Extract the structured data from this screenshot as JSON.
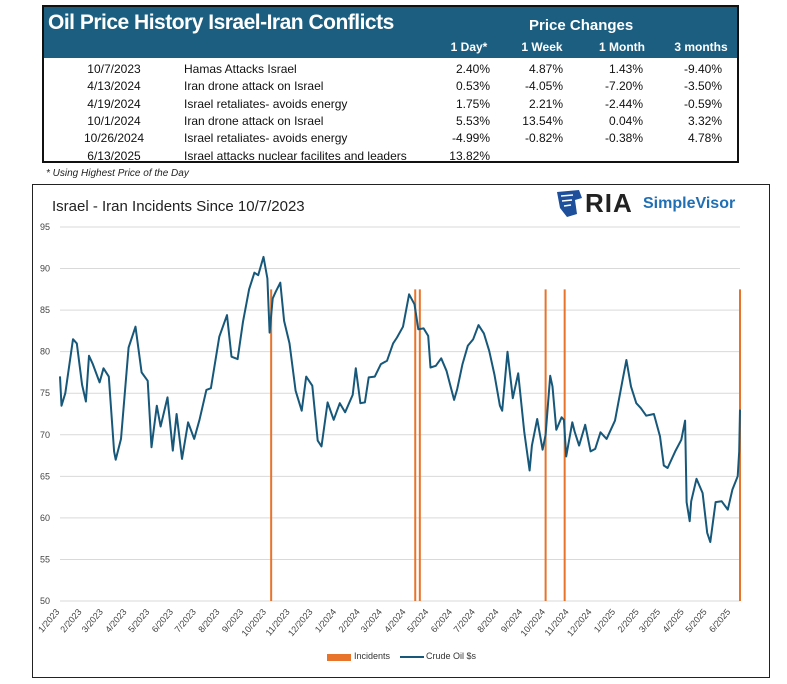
{
  "table": {
    "title": "Oil Price History Israel-Iran Conflicts",
    "group_header": "Price Changes",
    "columns": [
      "1 Day*",
      "1 Week",
      "1 Month",
      "3 months"
    ],
    "rows": [
      {
        "date": "10/7/2023",
        "event": "Hamas Attacks Israel",
        "values": [
          "2.40%",
          "4.87%",
          "1.43%",
          "-9.40%"
        ]
      },
      {
        "date": "4/13/2024",
        "event": "Iran drone attack on Israel",
        "values": [
          "0.53%",
          "-4.05%",
          "-7.20%",
          "-3.50%"
        ]
      },
      {
        "date": "4/19/2024",
        "event": "Israel retaliates- avoids energy",
        "values": [
          "1.75%",
          "2.21%",
          "-2.44%",
          "-0.59%"
        ]
      },
      {
        "date": "10/1/2024",
        "event": "Iran drone attack on Israel",
        "values": [
          "5.53%",
          "13.54%",
          "0.04%",
          "3.32%"
        ]
      },
      {
        "date": "10/26/2024",
        "event": "Israel retaliates- avoids energy",
        "values": [
          "-4.99%",
          "-0.82%",
          "-0.38%",
          "4.78%"
        ]
      },
      {
        "date": "6/13/2025",
        "event": "Israel attacks nuclear facilites and leaders",
        "values": [
          "13.82%",
          "",
          "",
          ""
        ]
      }
    ],
    "footnote": "* Using Highest Price of the Day"
  },
  "logo": {
    "ria": "RIA",
    "simplevisor": "SimpleVisor"
  },
  "chart_data": {
    "type": "line",
    "title": "Israel - Iran Incidents Since 10/7/2023",
    "ylim": [
      50,
      95
    ],
    "yticks": [
      50,
      55,
      60,
      65,
      70,
      75,
      80,
      85,
      90,
      95
    ],
    "xlim": [
      "2023-01-03",
      "2025-06-13"
    ],
    "xticks": [
      "1/2023",
      "2/2023",
      "3/2023",
      "4/2023",
      "5/2023",
      "6/2023",
      "7/2023",
      "8/2023",
      "9/2023",
      "10/2023",
      "11/2023",
      "12/2023",
      "1/2024",
      "2/2024",
      "3/2024",
      "4/2024",
      "5/2024",
      "6/2024",
      "7/2024",
      "8/2024",
      "9/2024",
      "10/2024",
      "11/2024",
      "12/2024",
      "1/2025",
      "2/2025",
      "3/2025",
      "4/2025",
      "5/2025",
      "6/2025"
    ],
    "grid": true,
    "legend_position": "bottom",
    "colors": {
      "incidents": "#e8732a",
      "crude": "#17587a"
    },
    "series": [
      {
        "name": "Crude Oil $s",
        "points": [
          [
            "2023-01-03",
            77
          ],
          [
            "2023-01-05",
            73.5
          ],
          [
            "2023-01-10",
            75
          ],
          [
            "2023-01-20",
            81.5
          ],
          [
            "2023-01-25",
            81
          ],
          [
            "2023-02-01",
            76
          ],
          [
            "2023-02-06",
            74
          ],
          [
            "2023-02-10",
            79.5
          ],
          [
            "2023-02-15",
            78.5
          ],
          [
            "2023-02-24",
            76.3
          ],
          [
            "2023-03-01",
            78
          ],
          [
            "2023-03-08",
            77
          ],
          [
            "2023-03-15",
            68
          ],
          [
            "2023-03-17",
            67
          ],
          [
            "2023-03-24",
            69.5
          ],
          [
            "2023-04-03",
            80.5
          ],
          [
            "2023-04-12",
            83
          ],
          [
            "2023-04-20",
            77.5
          ],
          [
            "2023-04-28",
            76.5
          ],
          [
            "2023-05-03",
            68.5
          ],
          [
            "2023-05-10",
            73.5
          ],
          [
            "2023-05-15",
            71
          ],
          [
            "2023-05-24",
            74.5
          ],
          [
            "2023-05-31",
            68.1
          ],
          [
            "2023-06-05",
            72.5
          ],
          [
            "2023-06-12",
            67.1
          ],
          [
            "2023-06-20",
            71.5
          ],
          [
            "2023-06-28",
            69.5
          ],
          [
            "2023-07-05",
            71.8
          ],
          [
            "2023-07-14",
            75.4
          ],
          [
            "2023-07-20",
            75.6
          ],
          [
            "2023-07-31",
            81.8
          ],
          [
            "2023-08-10",
            84.4
          ],
          [
            "2023-08-16",
            79.4
          ],
          [
            "2023-08-24",
            79.1
          ],
          [
            "2023-08-31",
            83.6
          ],
          [
            "2023-09-08",
            87.5
          ],
          [
            "2023-09-15",
            89.5
          ],
          [
            "2023-09-20",
            89.2
          ],
          [
            "2023-09-27",
            91.4
          ],
          [
            "2023-10-02",
            88.8
          ],
          [
            "2023-10-05",
            82.3
          ],
          [
            "2023-10-09",
            86.4
          ],
          [
            "2023-10-13",
            87.2
          ],
          [
            "2023-10-19",
            88.3
          ],
          [
            "2023-10-24",
            83.7
          ],
          [
            "2023-10-31",
            81
          ],
          [
            "2023-11-08",
            75.3
          ],
          [
            "2023-11-16",
            72.9
          ],
          [
            "2023-11-22",
            77
          ],
          [
            "2023-11-30",
            75.9
          ],
          [
            "2023-12-07",
            69.3
          ],
          [
            "2023-12-12",
            68.6
          ],
          [
            "2023-12-20",
            73.9
          ],
          [
            "2023-12-28",
            71.8
          ],
          [
            "2024-01-05",
            73.8
          ],
          [
            "2024-01-12",
            72.7
          ],
          [
            "2024-01-22",
            74.8
          ],
          [
            "2024-01-26",
            78
          ],
          [
            "2024-02-01",
            73.8
          ],
          [
            "2024-02-07",
            73.9
          ],
          [
            "2024-02-12",
            76.9
          ],
          [
            "2024-02-20",
            77
          ],
          [
            "2024-02-28",
            78.5
          ],
          [
            "2024-03-07",
            78.9
          ],
          [
            "2024-03-15",
            81
          ],
          [
            "2024-03-20",
            81.7
          ],
          [
            "2024-03-28",
            83
          ],
          [
            "2024-04-05",
            86.9
          ],
          [
            "2024-04-12",
            85.7
          ],
          [
            "2024-04-17",
            82.7
          ],
          [
            "2024-04-24",
            82.8
          ],
          [
            "2024-04-30",
            81.9
          ],
          [
            "2024-05-03",
            78.1
          ],
          [
            "2024-05-10",
            78.3
          ],
          [
            "2024-05-17",
            79.2
          ],
          [
            "2024-05-24",
            77.7
          ],
          [
            "2024-06-03",
            74.2
          ],
          [
            "2024-06-07",
            75.5
          ],
          [
            "2024-06-14",
            78.5
          ],
          [
            "2024-06-21",
            80.7
          ],
          [
            "2024-06-28",
            81.5
          ],
          [
            "2024-07-05",
            83.2
          ],
          [
            "2024-07-12",
            82.2
          ],
          [
            "2024-07-19",
            80.1
          ],
          [
            "2024-07-26",
            77.2
          ],
          [
            "2024-08-02",
            73.5
          ],
          [
            "2024-08-05",
            72.9
          ],
          [
            "2024-08-12",
            80
          ],
          [
            "2024-08-19",
            74.4
          ],
          [
            "2024-08-26",
            77.4
          ],
          [
            "2024-09-03",
            70.3
          ],
          [
            "2024-09-10",
            65.7
          ],
          [
            "2024-09-13",
            68.7
          ],
          [
            "2024-09-20",
            71.9
          ],
          [
            "2024-09-27",
            68.2
          ],
          [
            "2024-10-01",
            70
          ],
          [
            "2024-10-07",
            77.1
          ],
          [
            "2024-10-10",
            75.8
          ],
          [
            "2024-10-15",
            70.6
          ],
          [
            "2024-10-22",
            72.1
          ],
          [
            "2024-10-25",
            71.8
          ],
          [
            "2024-10-28",
            67.4
          ],
          [
            "2024-11-05",
            71.5
          ],
          [
            "2024-11-08",
            70.4
          ],
          [
            "2024-11-14",
            68.7
          ],
          [
            "2024-11-22",
            71.2
          ],
          [
            "2024-11-29",
            68
          ],
          [
            "2024-12-05",
            68.3
          ],
          [
            "2024-12-12",
            70.3
          ],
          [
            "2024-12-20",
            69.5
          ],
          [
            "2024-12-31",
            71.7
          ],
          [
            "2025-01-10",
            76.6
          ],
          [
            "2025-01-15",
            79
          ],
          [
            "2025-01-21",
            75.8
          ],
          [
            "2025-01-28",
            73.8
          ],
          [
            "2025-02-03",
            73.2
          ],
          [
            "2025-02-10",
            72.3
          ],
          [
            "2025-02-20",
            72.5
          ],
          [
            "2025-02-28",
            69.8
          ],
          [
            "2025-03-05",
            66.3
          ],
          [
            "2025-03-10",
            66
          ],
          [
            "2025-03-20",
            68
          ],
          [
            "2025-03-28",
            69.4
          ],
          [
            "2025-04-02",
            71.7
          ],
          [
            "2025-04-04",
            61.9
          ],
          [
            "2025-04-08",
            59.6
          ],
          [
            "2025-04-10",
            62
          ],
          [
            "2025-04-17",
            64.7
          ],
          [
            "2025-04-25",
            63
          ],
          [
            "2025-05-01",
            58.2
          ],
          [
            "2025-05-05",
            57.1
          ],
          [
            "2025-05-12",
            61.9
          ],
          [
            "2025-05-20",
            62
          ],
          [
            "2025-05-28",
            61
          ],
          [
            "2025-06-03",
            63.4
          ],
          [
            "2025-06-10",
            65
          ],
          [
            "2025-06-12",
            68
          ],
          [
            "2025-06-13",
            73
          ]
        ]
      },
      {
        "name": "Incidents",
        "type": "bar",
        "dates": [
          "2023-10-07",
          "2024-04-13",
          "2024-04-19",
          "2024-10-01",
          "2024-10-26",
          "2025-06-13"
        ],
        "value": 87.5
      }
    ]
  }
}
